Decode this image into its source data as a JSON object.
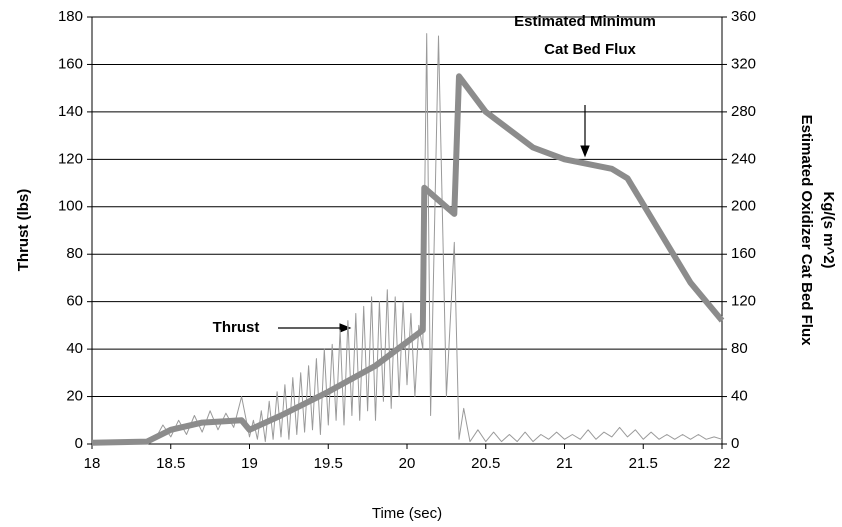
{
  "chart_data": {
    "type": "line",
    "xlabel": "Time (sec)",
    "ylabel": "Thrust (lbs)",
    "y2label": [
      "Estimated Oxidizer Cat Bed Flux",
      "Kg/(s m^2)"
    ],
    "annotations": [
      "Thrust",
      "Estimated Minimum",
      "Cat Bed Flux"
    ],
    "xlim": [
      18,
      22
    ],
    "xticks": [
      18,
      18.5,
      19,
      19.5,
      20,
      20.5,
      21,
      21.5,
      22
    ],
    "ylim": [
      0,
      180
    ],
    "yticks": [
      0,
      20,
      40,
      60,
      80,
      100,
      120,
      140,
      160,
      180
    ],
    "y2lim": [
      0,
      360
    ],
    "y2ticks": [
      0,
      40,
      80,
      120,
      160,
      200,
      240,
      280,
      320,
      360
    ],
    "grid": true,
    "series": [
      {
        "color": "#9a9a9a",
        "axis": "y",
        "x": [
          18,
          18.35,
          18.4,
          18.45,
          18.5,
          18.55,
          18.6,
          18.65,
          18.7,
          18.75,
          18.8,
          18.85,
          18.9,
          18.95,
          19,
          19.025,
          19.05,
          19.075,
          19.1,
          19.125,
          19.15,
          19.175,
          19.2,
          19.225,
          19.25,
          19.275,
          19.3,
          19.325,
          19.35,
          19.375,
          19.4,
          19.425,
          19.45,
          19.475,
          19.5,
          19.525,
          19.55,
          19.575,
          19.6,
          19.625,
          19.65,
          19.675,
          19.7,
          19.725,
          19.75,
          19.775,
          19.8,
          19.825,
          19.85,
          19.875,
          19.9,
          19.925,
          19.95,
          19.975,
          20,
          20.025,
          20.05,
          20.075,
          20.1,
          20.125,
          20.15,
          20.2,
          20.25,
          20.3,
          20.33,
          20.36,
          20.4,
          20.45,
          20.5,
          20.55,
          20.6,
          20.65,
          20.7,
          20.75,
          20.8,
          20.85,
          20.9,
          20.95,
          21,
          21.05,
          21.1,
          21.15,
          21.2,
          21.25,
          21.3,
          21.35,
          21.4,
          21.45,
          21.5,
          21.55,
          21.6,
          21.65,
          21.7,
          21.75,
          21.8,
          21.85,
          21.9,
          21.95,
          22
        ],
        "values": [
          1,
          1,
          2,
          8,
          3,
          10,
          4,
          12,
          5,
          14,
          6,
          13,
          7,
          20,
          3,
          10,
          2,
          14,
          1,
          18,
          2,
          22,
          3,
          25,
          2,
          28,
          4,
          30,
          5,
          33,
          6,
          36,
          4,
          40,
          8,
          42,
          10,
          48,
          8,
          52,
          12,
          55,
          10,
          58,
          14,
          62,
          10,
          60,
          18,
          65,
          15,
          62,
          20,
          60,
          25,
          55,
          20,
          50,
          40,
          173,
          12,
          172,
          20,
          85,
          2,
          15,
          1,
          6,
          1,
          5,
          1,
          4,
          1,
          5,
          1,
          4,
          2,
          5,
          2,
          4,
          2,
          6,
          2,
          5,
          3,
          7,
          3,
          6,
          2,
          5,
          2,
          4,
          2,
          4,
          2,
          4,
          2,
          3,
          2
        ]
      },
      {
        "color": "#8c8c8c",
        "axis": "y2",
        "x": [
          18,
          18.35,
          18.5,
          18.7,
          18.95,
          19,
          19.2,
          19.5,
          19.8,
          20.1,
          20.11,
          20.3,
          20.33,
          20.5,
          20.8,
          21,
          21.3,
          21.4,
          21.6,
          21.8,
          22
        ],
        "values": [
          1,
          2,
          12,
          18,
          20,
          12,
          24,
          44,
          66,
          96,
          216,
          194,
          310,
          280,
          250,
          240,
          232,
          224,
          180,
          136,
          104
        ]
      }
    ]
  }
}
